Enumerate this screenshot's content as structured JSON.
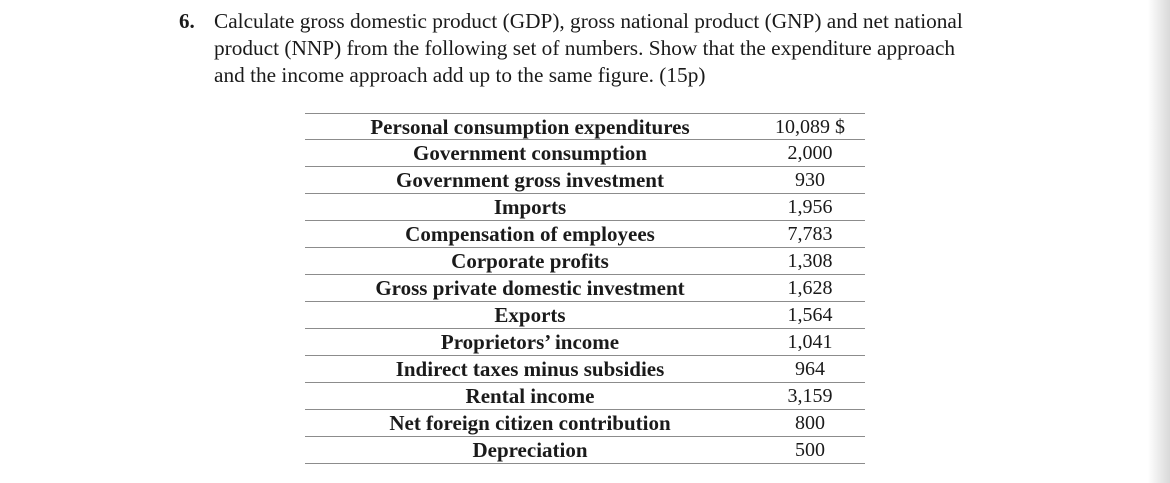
{
  "question": {
    "number": "6.",
    "lines": [
      "Calculate gross domestic product (GDP), gross national product (GNP) and net national",
      "product (NNP) from the following set of numbers. Show that the expenditure approach",
      "and the income approach add up to the same figure. (15p)"
    ]
  },
  "table": {
    "rows": [
      {
        "label": "Personal consumption expenditures",
        "value": "10,089 $"
      },
      {
        "label": "Government consumption",
        "value": "2,000"
      },
      {
        "label": "Government gross investment",
        "value": "930"
      },
      {
        "label": "Imports",
        "value": "1,956"
      },
      {
        "label": "Compensation of employees",
        "value": "7,783"
      },
      {
        "label": "Corporate profits",
        "value": "1,308"
      },
      {
        "label": "Gross private domestic investment",
        "value": "1,628"
      },
      {
        "label": "Exports",
        "value": "1,564"
      },
      {
        "label": "Proprietors’ income",
        "value": "1,041"
      },
      {
        "label": "Indirect taxes minus subsidies",
        "value": "964"
      },
      {
        "label": "Rental income",
        "value": "3,159"
      },
      {
        "label": "Net foreign citizen contribution",
        "value": "800"
      },
      {
        "label": "Depreciation",
        "value": "500"
      }
    ]
  }
}
